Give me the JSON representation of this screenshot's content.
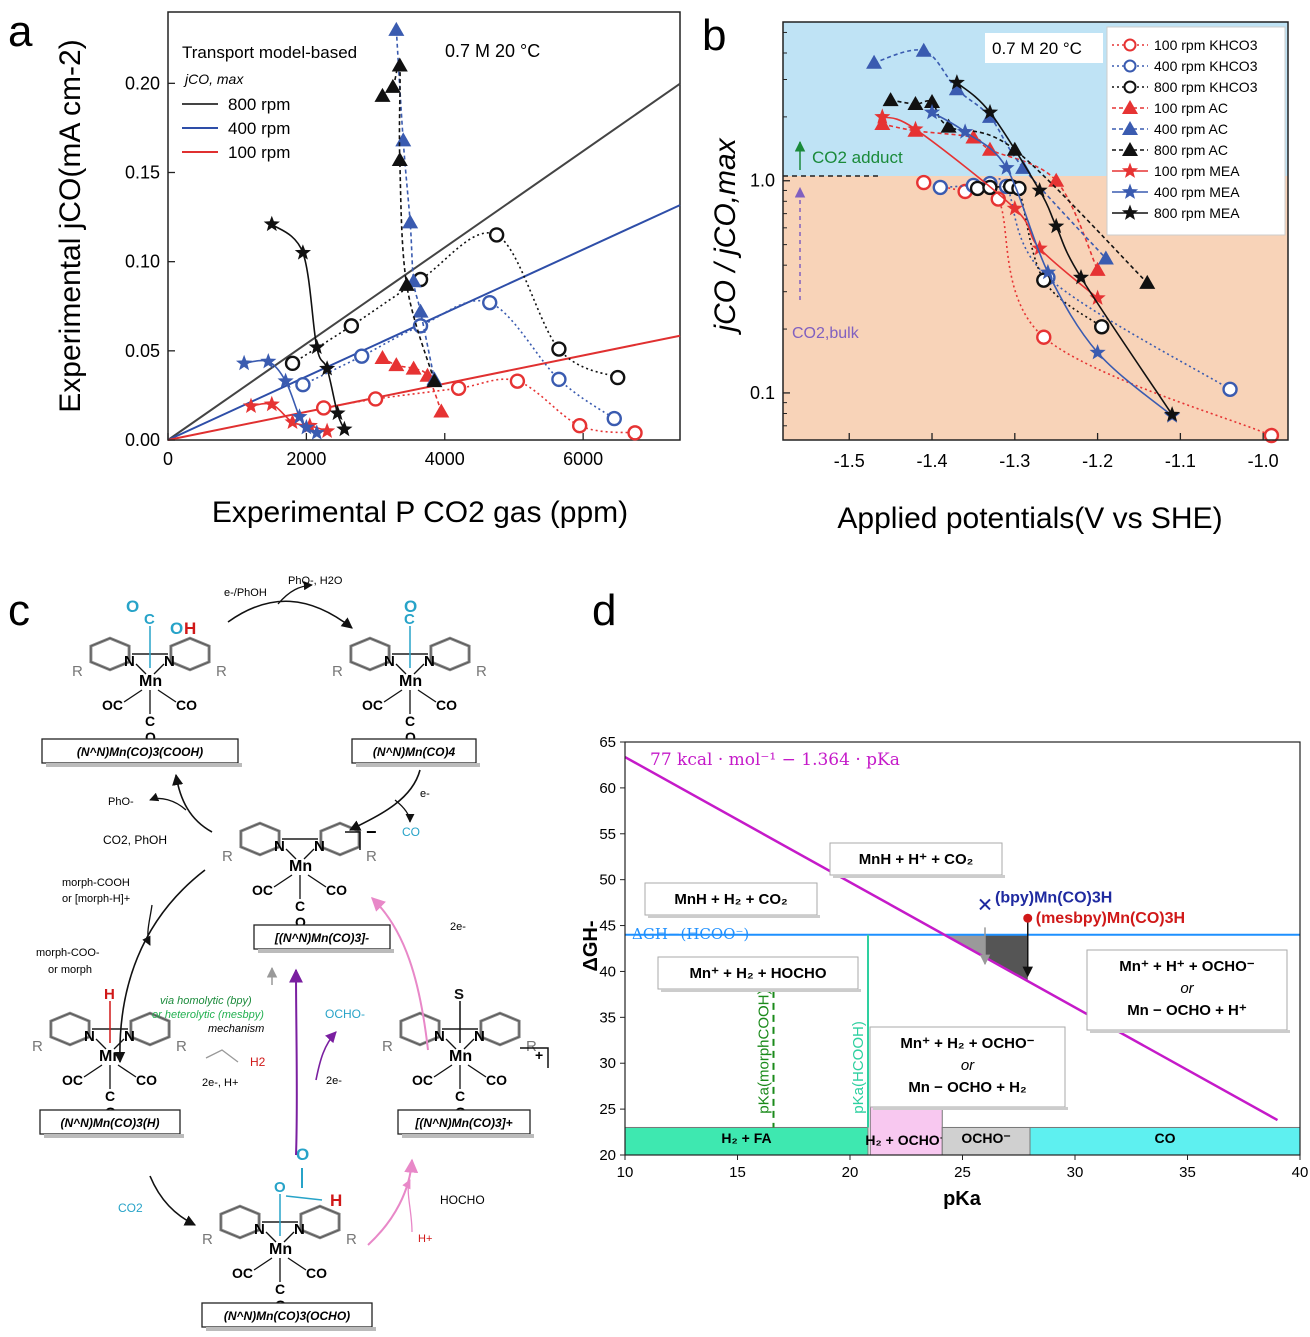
{
  "panels": {
    "a": "a",
    "b": "b",
    "c": "c",
    "d": "d"
  },
  "chart_a": {
    "type": "scatter",
    "ylabel": "Experimental jCO(mA cm-2)",
    "xlabel": "Experimental P CO2 gas (ppm)",
    "xlim": [
      0,
      7400
    ],
    "ylim": [
      0,
      0.24
    ],
    "xticks": [
      0,
      2000,
      4000,
      6000
    ],
    "yticks": [
      0.0,
      0.05,
      0.1,
      0.15,
      0.2
    ],
    "legend_title": "Transport model-based",
    "legend_sub": "jCO, max",
    "annotation": "0.7 M 20 °C",
    "model_lines": [
      {
        "name": "800 rpm",
        "color": "#444444",
        "slope": 2.7e-05
      },
      {
        "name": "400 rpm",
        "color": "#2e4ea8",
        "slope": 1.78e-05
      },
      {
        "name": "100 rpm",
        "color": "#e03030",
        "slope": 7.9e-06
      }
    ],
    "series": [
      {
        "name": "100 rpm KHCO3",
        "color": "#e63333",
        "marker": "circle",
        "dash": "2,3",
        "points": [
          [
            2250,
            0.018
          ],
          [
            3000,
            0.023
          ],
          [
            4200,
            0.029
          ],
          [
            5050,
            0.033
          ],
          [
            5950,
            0.008
          ],
          [
            6750,
            0.004
          ]
        ]
      },
      {
        "name": "400 rpm KHCO3",
        "color": "#3a5bb0",
        "marker": "circle",
        "dash": "2,3",
        "points": [
          [
            1950,
            0.031
          ],
          [
            2800,
            0.047
          ],
          [
            3650,
            0.064
          ],
          [
            4650,
            0.077
          ],
          [
            5650,
            0.034
          ],
          [
            6450,
            0.012
          ]
        ]
      },
      {
        "name": "800 rpm KHCO3",
        "color": "#111111",
        "marker": "circle",
        "dash": "2,3",
        "points": [
          [
            1800,
            0.043
          ],
          [
            2650,
            0.064
          ],
          [
            3650,
            0.09
          ],
          [
            4750,
            0.115
          ],
          [
            5650,
            0.051
          ],
          [
            6500,
            0.035
          ]
        ]
      },
      {
        "name": "100 rpm AC",
        "color": "#e63333",
        "marker": "triangle",
        "dash": "4,3",
        "points": [
          [
            3100,
            0.046
          ],
          [
            3300,
            0.042
          ],
          [
            3550,
            0.04
          ],
          [
            3750,
            0.036
          ],
          [
            3950,
            0.016
          ]
        ]
      },
      {
        "name": "400 rpm AC",
        "color": "#3a5bb0",
        "marker": "triangle",
        "dash": "4,3",
        "points": [
          [
            3300,
            0.23
          ],
          [
            3400,
            0.168
          ],
          [
            3500,
            0.122
          ],
          [
            3550,
            0.089
          ],
          [
            3650,
            0.072
          ],
          [
            3850,
            0.034
          ]
        ]
      },
      {
        "name": "800 rpm AC",
        "color": "#111111",
        "marker": "triangle",
        "dash": "4,3",
        "points": [
          [
            3100,
            0.193
          ],
          [
            3250,
            0.198
          ],
          [
            3350,
            0.21
          ],
          [
            3350,
            0.157
          ],
          [
            3450,
            0.087
          ],
          [
            3850,
            0.033
          ]
        ]
      },
      {
        "name": "100 rpm MEA",
        "color": "#e63333",
        "marker": "star",
        "dash": "",
        "points": [
          [
            1200,
            0.019
          ],
          [
            1500,
            0.02
          ],
          [
            1800,
            0.01
          ],
          [
            2050,
            0.008
          ],
          [
            2300,
            0.005
          ]
        ]
      },
      {
        "name": "400 rpm MEA",
        "color": "#3a5bb0",
        "marker": "star",
        "dash": "",
        "points": [
          [
            1100,
            0.043
          ],
          [
            1450,
            0.044
          ],
          [
            1700,
            0.033
          ],
          [
            1900,
            0.013
          ],
          [
            2000,
            0.007
          ],
          [
            2150,
            0.004
          ]
        ]
      },
      {
        "name": "800 rpm MEA",
        "color": "#111111",
        "marker": "star",
        "dash": "",
        "points": [
          [
            1500,
            0.121
          ],
          [
            1950,
            0.105
          ],
          [
            2150,
            0.052
          ],
          [
            2300,
            0.04
          ],
          [
            2450,
            0.015
          ],
          [
            2550,
            0.006
          ]
        ]
      }
    ]
  },
  "chart_b": {
    "type": "scatter",
    "ylabel": "jCO / jCO,max",
    "xlabel": "Applied potentials(V vs SHE)",
    "xlim": [
      -1.58,
      -0.97
    ],
    "ylim": [
      0.06,
      5.6
    ],
    "yscale": "log",
    "xticks": [
      "-1.5",
      "-1.4",
      "-1.3",
      "-1.2",
      "-1.1",
      "-1.0"
    ],
    "yticks": [
      "0.1",
      "1.0"
    ],
    "annotation": "0.7 M 20 °C",
    "region_above": "CO2 adduct",
    "region_below": "CO2,bulk",
    "legend": [
      "100 rpm KHCO3",
      "400 rpm KHCO3",
      "800 rpm KHCO3",
      "100 rpm AC",
      "400 rpm AC",
      "800 rpm AC",
      "100 rpm MEA",
      "400 rpm MEA",
      "800 rpm MEA"
    ],
    "series": [
      {
        "name": "100 rpm KHCO3",
        "color": "#e63333",
        "marker": "circle",
        "dash": "2,3",
        "points": [
          [
            -1.41,
            0.98
          ],
          [
            -1.36,
            0.89
          ],
          [
            -1.32,
            0.82
          ],
          [
            -1.265,
            0.183
          ],
          [
            -0.99,
            0.063
          ]
        ]
      },
      {
        "name": "400 rpm KHCO3",
        "color": "#3a5bb0",
        "marker": "circle",
        "dash": "2,3",
        "points": [
          [
            -1.39,
            0.93
          ],
          [
            -1.35,
            0.95
          ],
          [
            -1.33,
            0.97
          ],
          [
            -1.31,
            0.94
          ],
          [
            -1.26,
            0.35
          ],
          [
            -1.04,
            0.104
          ]
        ]
      },
      {
        "name": "800 rpm KHCO3",
        "color": "#111111",
        "marker": "circle",
        "dash": "2,3",
        "points": [
          [
            -1.345,
            0.92
          ],
          [
            -1.33,
            0.93
          ],
          [
            -1.305,
            0.94
          ],
          [
            -1.295,
            0.92
          ],
          [
            -1.265,
            0.34
          ],
          [
            -1.195,
            0.205
          ]
        ]
      },
      {
        "name": "100 rpm AC",
        "color": "#e63333",
        "marker": "triangle",
        "dash": "4,3",
        "points": [
          [
            -1.46,
            1.85
          ],
          [
            -1.42,
            1.72
          ],
          [
            -1.35,
            1.6
          ],
          [
            -1.33,
            1.4
          ],
          [
            -1.25,
            1.0
          ],
          [
            -1.2,
            0.38
          ]
        ]
      },
      {
        "name": "400 rpm AC",
        "color": "#3a5bb0",
        "marker": "triangle",
        "dash": "4,3",
        "points": [
          [
            -1.47,
            3.6
          ],
          [
            -1.41,
            4.1
          ],
          [
            -1.37,
            2.7
          ],
          [
            -1.33,
            2.0
          ],
          [
            -1.29,
            1.15
          ],
          [
            -1.19,
            0.43
          ]
        ]
      },
      {
        "name": "800 rpm AC",
        "color": "#111111",
        "marker": "triangle",
        "dash": "4,3",
        "points": [
          [
            -1.45,
            2.4
          ],
          [
            -1.42,
            2.3
          ],
          [
            -1.4,
            2.35
          ],
          [
            -1.38,
            1.8
          ],
          [
            -1.3,
            1.4
          ],
          [
            -1.14,
            0.33
          ]
        ]
      },
      {
        "name": "100 rpm MEA",
        "color": "#e63333",
        "marker": "star",
        "dash": "",
        "points": [
          [
            -1.46,
            2.0
          ],
          [
            -1.42,
            1.75
          ],
          [
            -1.3,
            0.74
          ],
          [
            -1.27,
            0.48
          ],
          [
            -1.2,
            0.28
          ]
        ]
      },
      {
        "name": "400 rpm MEA",
        "color": "#3a5bb0",
        "marker": "star",
        "dash": "",
        "points": [
          [
            -1.4,
            2.1
          ],
          [
            -1.36,
            1.7
          ],
          [
            -1.31,
            1.15
          ],
          [
            -1.26,
            0.37
          ],
          [
            -1.2,
            0.155
          ],
          [
            -1.11,
            0.078
          ]
        ]
      },
      {
        "name": "800 rpm MEA",
        "color": "#111111",
        "marker": "star",
        "dash": "",
        "points": [
          [
            -1.37,
            2.9
          ],
          [
            -1.33,
            2.1
          ],
          [
            -1.27,
            0.9
          ],
          [
            -1.25,
            0.61
          ],
          [
            -1.22,
            0.35
          ],
          [
            -1.11,
            0.079
          ]
        ]
      }
    ]
  },
  "panel_c": {
    "species": {
      "cooh": "(N^N)Mn(CO)3(COOH)",
      "co4": "(N^N)Mn(CO)4",
      "anion": "[(N^N)Mn(CO)3]-",
      "hydride": "(N^N)Mn(CO)3(H)",
      "solv": "[(N^N)Mn(CO)3]+",
      "ocho": "(N^N)Mn(CO)3(OCHO)"
    },
    "labels": {
      "e_phoh": "e-/PhOH",
      "pho_h2o": "PhO-, H2O",
      "e": "e-",
      "co": "CO",
      "pho": "PhO-",
      "co2_phoh": "CO2, PhOH",
      "morph_acid": "morph-COOH",
      "morph_acid2": "or [morph-H]+",
      "morph_base": "morph-COO-",
      "morph_base2": "or morph",
      "via1": "via homolytic (bpy)",
      "via2": "or heterolytic (mesbpy)",
      "via3": "mechanism",
      "h2": "H2",
      "two_e_h": "2e-, H+",
      "ocho_anion": "OCHO-",
      "two_e_a": "2e-",
      "two_e_b": "2e-",
      "co2": "CO2",
      "hocho": "HOCHO",
      "hplus": "H+",
      "plus": "+"
    }
  },
  "chart_d": {
    "type": "line",
    "ylabel": "ΔGH-",
    "xlabel": "pKa",
    "xlim": [
      10,
      40
    ],
    "ylim": [
      20,
      65
    ],
    "xticks": [
      10,
      15,
      20,
      25,
      30,
      35,
      40
    ],
    "yticks": [
      20,
      25,
      30,
      35,
      40,
      45,
      50,
      55,
      60,
      65
    ],
    "line_label": "77 kcal · mol⁻¹ − 1.364 · pKa",
    "hline_label": "ΔGH−(HCOO⁻)",
    "hline_y": 44,
    "pka_hcooh": 20.8,
    "pka_morph": 16.6,
    "pka_hcooh_label": "pKa(HCOOH)",
    "pka_morph_label": "pKa(morphCOOH)",
    "points": [
      {
        "label": "(bpy)Mn(CO)3H",
        "x": 26.0,
        "y": 45.8,
        "color": "#1f2aa0",
        "marker": "x"
      },
      {
        "label": "(mesbpy)Mn(CO)3H",
        "x": 27.9,
        "y": 45.8,
        "color": "#d01818",
        "marker": "dot"
      }
    ],
    "region_labels": {
      "mnh_h_co2": "MnH + H⁺ + CO₂",
      "mnh_h2_co2": "MnH + H₂ + CO₂",
      "mn_h2_hocho": "Mn⁺ + H₂ + HOCHO",
      "right1": "Mn⁺ + H⁺ + OCHO⁻",
      "right_or": "or",
      "right2": "Mn − OCHO + H⁺",
      "mid1": "Mn⁺ + H₂ + OCHO⁻",
      "mid_or": "or",
      "mid2": "Mn − OCHO + H₂"
    },
    "bottom_bars": [
      {
        "label": "H₂ + FA",
        "x0": 10,
        "x1": 20.8,
        "color": "#3ee8b0"
      },
      {
        "label": "H₂ + OCHO⁻",
        "x0": 20.9,
        "x1": 24.1,
        "color": "#f8c8f0"
      },
      {
        "label": "OCHO⁻",
        "x0": 24.1,
        "x1": 28.0,
        "color": "#d0d0d0"
      },
      {
        "label": "CO",
        "x0": 28.0,
        "x1": 40,
        "color": "#5ef0f0"
      }
    ]
  }
}
